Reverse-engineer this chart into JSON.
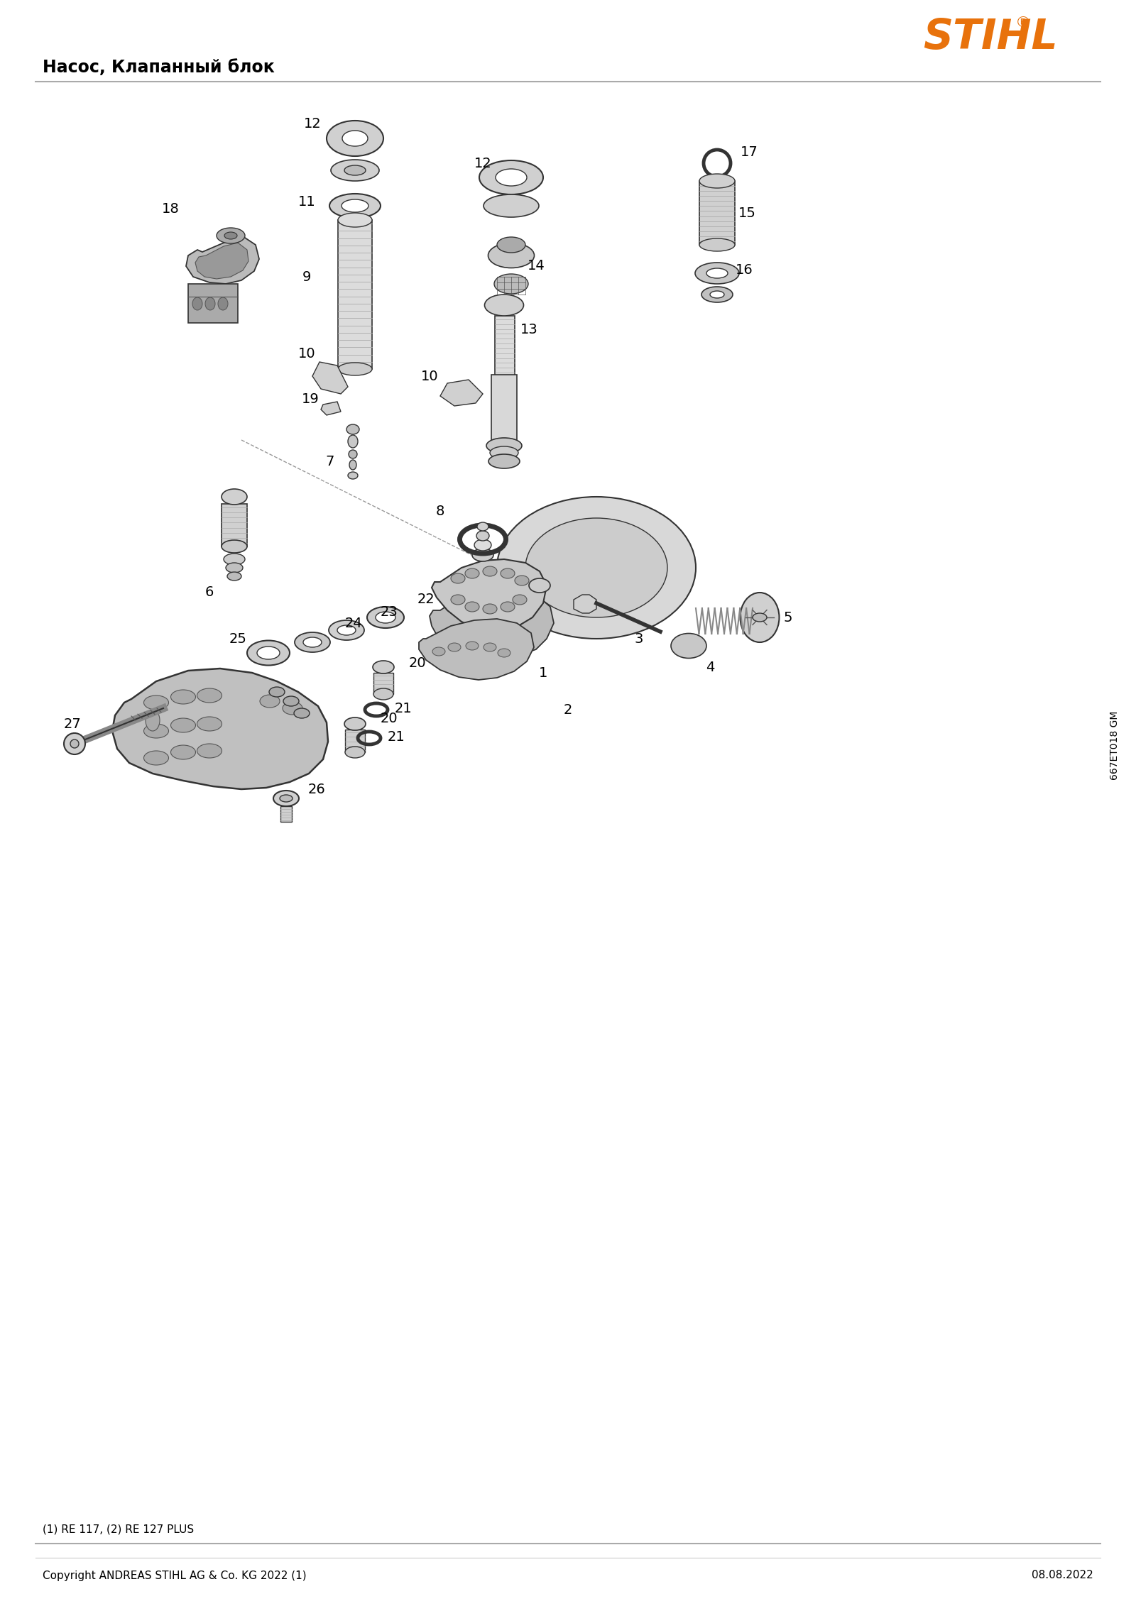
{
  "title": "Насос, Клапанный блок",
  "stihl_color": "#E8720C",
  "copyright_text": "Copyright ANDREAS STIHL AG & Co. KG 2022 (1)",
  "date_text": "08.08.2022",
  "footnote_text": "(1) RE 117, (2) RE 127 PLUS",
  "doc_id": "667ET018 GM",
  "bg_color": "#FFFFFF",
  "text_color": "#000000",
  "gray1": "#C8C8C8",
  "gray2": "#999999",
  "gray3": "#E8E8E8",
  "outline": "#333333",
  "dgray": "#555555",
  "lgray": "#DDDDDD"
}
